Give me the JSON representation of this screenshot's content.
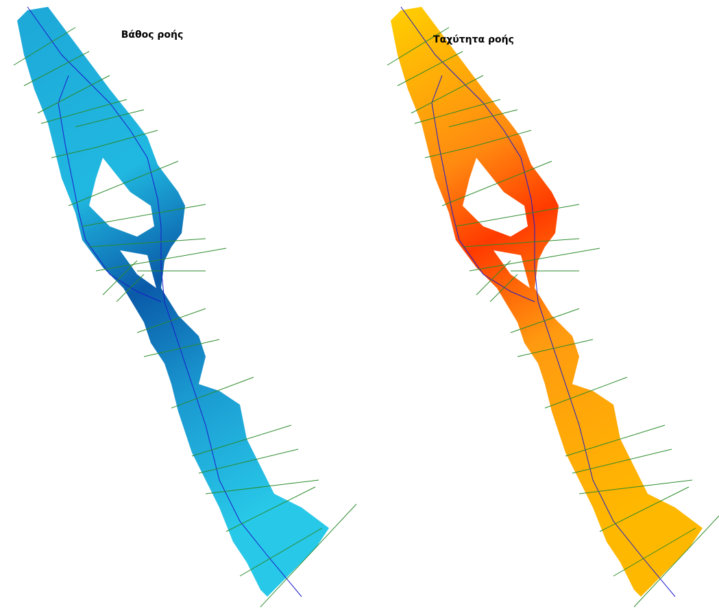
{
  "panels": [
    {
      "title": "Βάθος ροής"
    },
    {
      "title": "Ταχύτητα ροής"
    }
  ]
}
